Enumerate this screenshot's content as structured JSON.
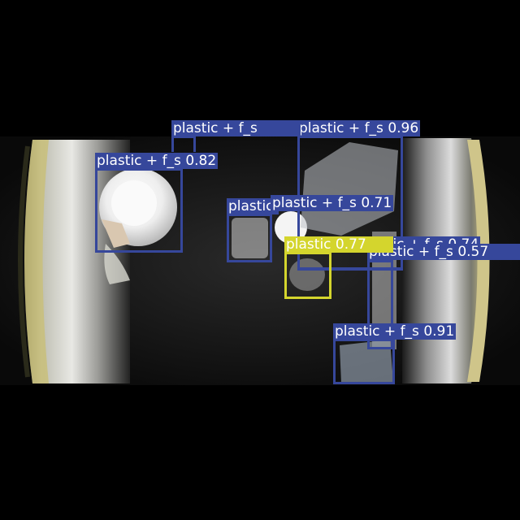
{
  "colors": {
    "background": "#000000",
    "box_blue": "#36479b",
    "box_yellow": "#d4d52d"
  },
  "detections": [
    {
      "label": "plastic + f_s 0.96",
      "color": "#36479b"
    },
    {
      "label": "plastic + f_s 0.82",
      "color": "#36479b"
    },
    {
      "label": "plastic + f_s 0.71",
      "color": "#36479b"
    },
    {
      "label": "plastic + f_s 0.74",
      "color": "#36479b"
    },
    {
      "label": "plastic + f_s 0.57",
      "color": "#36479b"
    },
    {
      "label": "plastic 0.77",
      "color": "#d4d52d"
    },
    {
      "label": "plastic + f_s 0.91",
      "color": "#36479b"
    },
    {
      "label": "plastic + f_s",
      "color": "#36479b"
    }
  ]
}
